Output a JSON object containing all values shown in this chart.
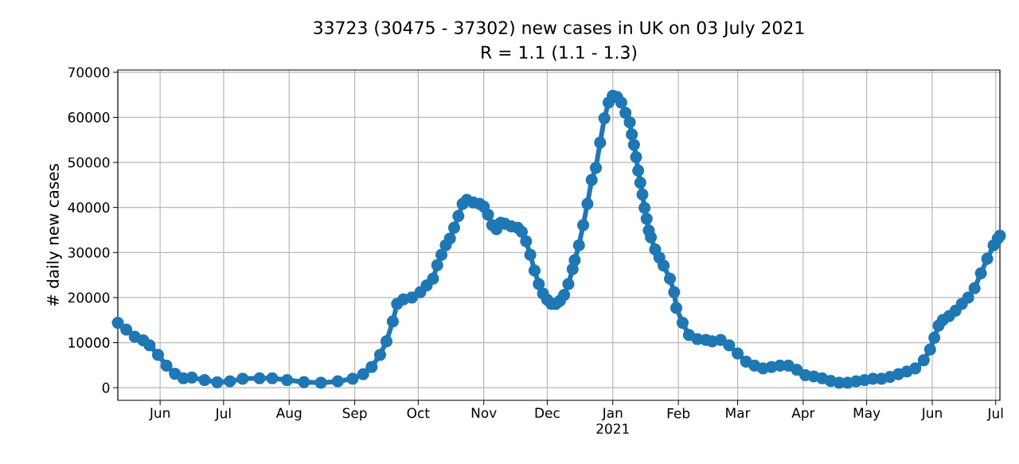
{
  "chart_data": {
    "type": "line",
    "title": "33723 (30475 - 37302) new cases in UK on 03 July 2021",
    "subtitle": "R = 1.1 (1.1 - 1.3)",
    "ylabel": "# daily new cases",
    "x": [
      "2020-05-12",
      "2020-05-16",
      "2020-05-20",
      "2020-05-24",
      "2020-05-27",
      "2020-05-31",
      "2020-06-04",
      "2020-06-08",
      "2020-06-12",
      "2020-06-16",
      "2020-06-22",
      "2020-06-28",
      "2020-07-04",
      "2020-07-10",
      "2020-07-18",
      "2020-07-24",
      "2020-07-31",
      "2020-08-08",
      "2020-08-16",
      "2020-08-24",
      "2020-08-31",
      "2020-09-05",
      "2020-09-09",
      "2020-09-13",
      "2020-09-16",
      "2020-09-19",
      "2020-09-21",
      "2020-09-24",
      "2020-09-28",
      "2020-10-02",
      "2020-10-05",
      "2020-10-08",
      "2020-10-10",
      "2020-10-12",
      "2020-10-14",
      "2020-10-16",
      "2020-10-18",
      "2020-10-20",
      "2020-10-22",
      "2020-10-24",
      "2020-10-27",
      "2020-10-30",
      "2020-11-01",
      "2020-11-03",
      "2020-11-05",
      "2020-11-07",
      "2020-11-09",
      "2020-11-11",
      "2020-11-14",
      "2020-11-17",
      "2020-11-19",
      "2020-11-21",
      "2020-11-23",
      "2020-11-25",
      "2020-11-27",
      "2020-11-29",
      "2020-12-01",
      "2020-12-03",
      "2020-12-05",
      "2020-12-07",
      "2020-12-09",
      "2020-12-11",
      "2020-12-13",
      "2020-12-14",
      "2020-12-16",
      "2020-12-18",
      "2020-12-20",
      "2020-12-22",
      "2020-12-24",
      "2020-12-26",
      "2020-12-28",
      "2020-12-30",
      "2021-01-01",
      "2021-01-03",
      "2021-01-05",
      "2021-01-07",
      "2021-01-09",
      "2021-01-10",
      "2021-01-11",
      "2021-01-12",
      "2021-01-13",
      "2021-01-14",
      "2021-01-15",
      "2021-01-16",
      "2021-01-17",
      "2021-01-18",
      "2021-01-19",
      "2021-01-21",
      "2021-01-23",
      "2021-01-25",
      "2021-01-28",
      "2021-01-30",
      "2021-01-31",
      "2021-02-03",
      "2021-02-06",
      "2021-02-10",
      "2021-02-14",
      "2021-02-17",
      "2021-02-21",
      "2021-02-25",
      "2021-03-01",
      "2021-03-05",
      "2021-03-09",
      "2021-03-13",
      "2021-03-17",
      "2021-03-21",
      "2021-03-25",
      "2021-03-29",
      "2021-04-02",
      "2021-04-06",
      "2021-04-10",
      "2021-04-14",
      "2021-04-18",
      "2021-04-22",
      "2021-04-26",
      "2021-04-30",
      "2021-05-04",
      "2021-05-08",
      "2021-05-12",
      "2021-05-16",
      "2021-05-20",
      "2021-05-24",
      "2021-05-28",
      "2021-05-31",
      "2021-06-02",
      "2021-06-04",
      "2021-06-06",
      "2021-06-09",
      "2021-06-12",
      "2021-06-15",
      "2021-06-18",
      "2021-06-21",
      "2021-06-24",
      "2021-06-27",
      "2021-06-30",
      "2021-07-02",
      "2021-07-03"
    ],
    "series": [
      {
        "color": "#1f77b4",
        "values": [
          14400,
          12900,
          11300,
          10500,
          9400,
          7300,
          4900,
          3100,
          2100,
          2250,
          1700,
          1200,
          1400,
          2000,
          2100,
          2100,
          1700,
          1250,
          1100,
          1400,
          2000,
          3000,
          4600,
          7300,
          10300,
          14700,
          18600,
          19600,
          20000,
          21200,
          22700,
          24200,
          27200,
          29500,
          31600,
          33100,
          35500,
          38100,
          40800,
          41700,
          41100,
          40800,
          40200,
          38400,
          36100,
          35200,
          36600,
          36400,
          35800,
          35500,
          34600,
          32500,
          29500,
          26000,
          23000,
          20900,
          19500,
          18600,
          18600,
          19300,
          20600,
          23000,
          26300,
          28300,
          31600,
          36100,
          40800,
          46100,
          48800,
          54400,
          59800,
          63300,
          64800,
          64500,
          63300,
          61000,
          58900,
          56200,
          53900,
          51200,
          48200,
          45500,
          42900,
          39900,
          37500,
          34900,
          33400,
          30700,
          28900,
          27100,
          24200,
          21200,
          17700,
          14400,
          11700,
          10800,
          10600,
          10300,
          10600,
          9400,
          7600,
          5800,
          4900,
          4300,
          4600,
          4900,
          4900,
          4000,
          2800,
          2500,
          2100,
          1500,
          1100,
          1100,
          1400,
          1700,
          2000,
          2000,
          2400,
          3000,
          3600,
          4300,
          6100,
          8500,
          11100,
          13800,
          15000,
          15900,
          17100,
          18600,
          20000,
          22100,
          25400,
          28600,
          31600,
          33100,
          33723
        ]
      }
    ],
    "xlim": [
      "2020-05-12",
      "2021-07-03"
    ],
    "xticks": [
      {
        "value": "2020-06-01",
        "label": "Jun"
      },
      {
        "value": "2020-07-01",
        "label": "Jul"
      },
      {
        "value": "2020-08-01",
        "label": "Aug"
      },
      {
        "value": "2020-09-01",
        "label": "Sep"
      },
      {
        "value": "2020-10-01",
        "label": "Oct"
      },
      {
        "value": "2020-11-01",
        "label": "Nov"
      },
      {
        "value": "2020-12-01",
        "label": "Dec"
      },
      {
        "value": "2021-01-01",
        "label": "Jan 2021"
      },
      {
        "value": "2021-02-01",
        "label": "Feb"
      },
      {
        "value": "2021-03-01",
        "label": "Mar"
      },
      {
        "value": "2021-04-01",
        "label": "Apr"
      },
      {
        "value": "2021-05-01",
        "label": "May"
      },
      {
        "value": "2021-06-01",
        "label": "Jun"
      },
      {
        "value": "2021-07-01",
        "label": "Jul"
      }
    ],
    "ylim": [
      -2800,
      70500
    ],
    "yticks": [
      0,
      10000,
      20000,
      30000,
      40000,
      50000,
      60000,
      70000
    ],
    "grid": true,
    "marker": "circle"
  }
}
